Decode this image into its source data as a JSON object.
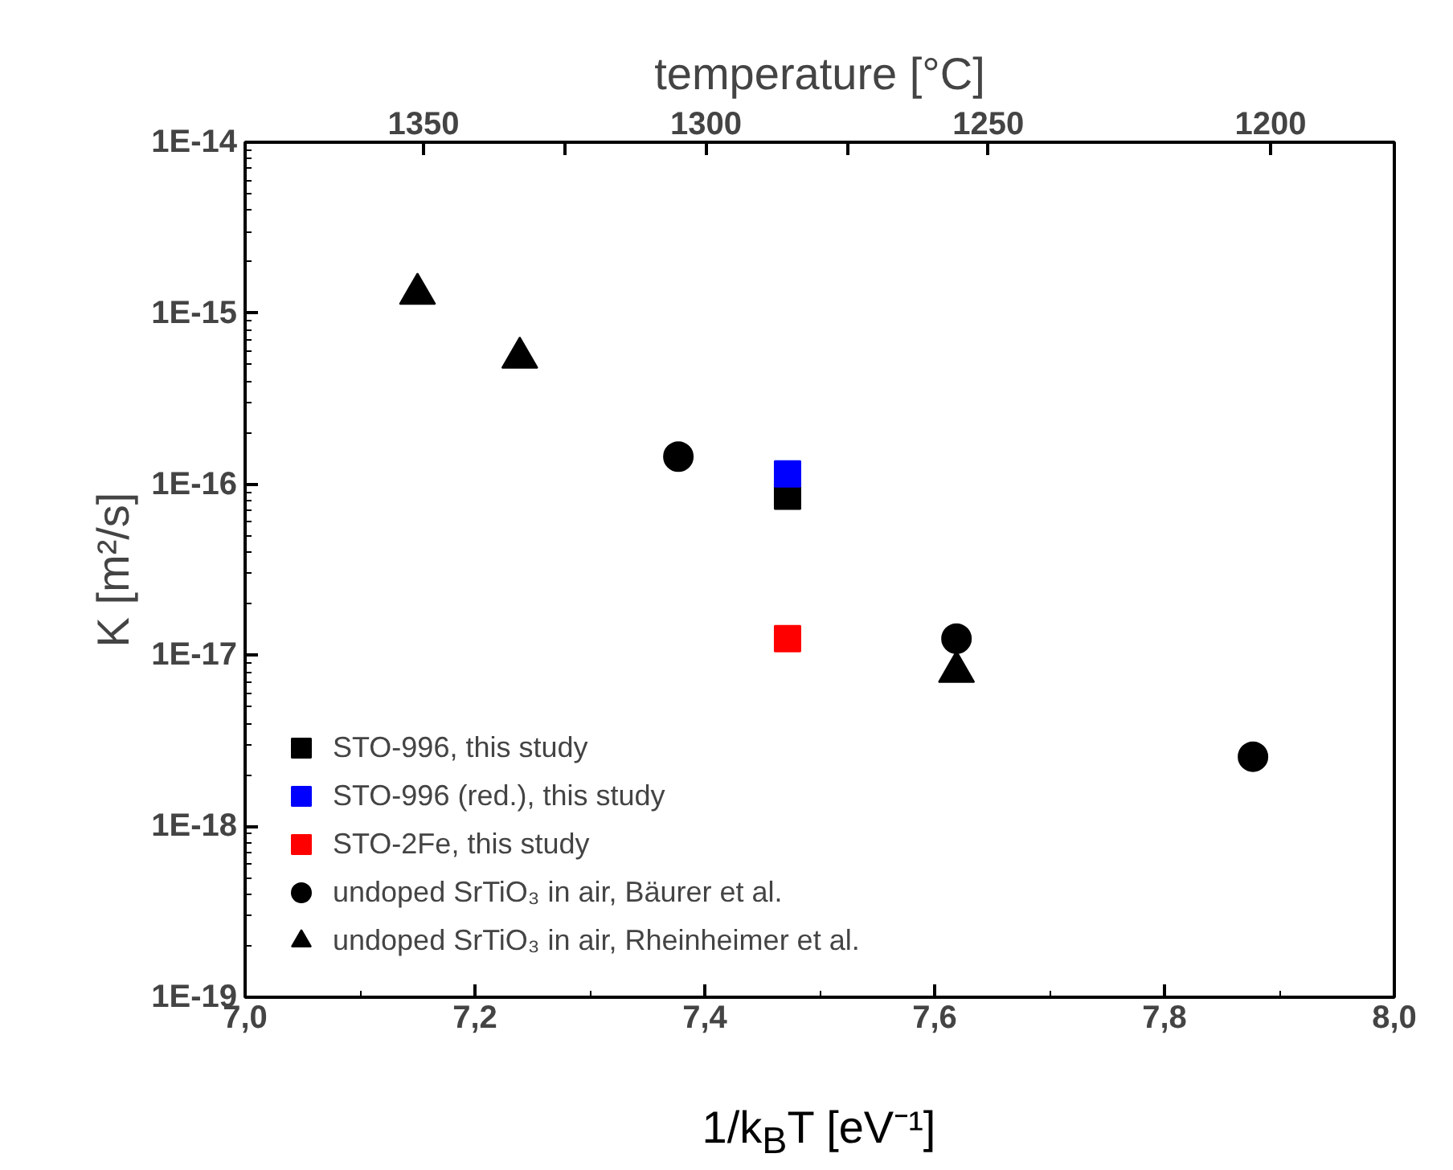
{
  "chart_data": {
    "type": "scatter",
    "xlabel": "1/k$_{B}$T [eV⁻¹]",
    "ylabel": "K [m²/s]",
    "x2label": "temperature [°C]",
    "xlim": [
      7.0,
      8.0
    ],
    "xticks": [
      {
        "value": 7.0,
        "label": "7,0"
      },
      {
        "value": 7.2,
        "label": "7,2"
      },
      {
        "value": 7.4,
        "label": "7,4"
      },
      {
        "value": 7.6,
        "label": "7,6"
      },
      {
        "value": 7.8,
        "label": "7,8"
      },
      {
        "value": 8.0,
        "label": "8,0"
      }
    ],
    "x2lim": [
      1381.6,
      1178.1
    ],
    "x2ticks": [
      1350,
      {
        "value": 1325,
        "label": null
      },
      1300,
      {
        "value": 1275,
        "label": null
      },
      1250,
      1200
    ],
    "ylim": [
      1e-19,
      1e-14
    ],
    "yticks": [
      {
        "value": 1e-19,
        "label": "1E-19"
      },
      {
        "value": 1e-18,
        "label": "1E-18"
      },
      {
        "value": 1e-17,
        "label": "1E-17"
      },
      {
        "value": 1e-16,
        "label": "1E-16"
      },
      {
        "value": 1e-15,
        "label": "1E-15"
      },
      {
        "value": 1e-14,
        "label": "1E-14"
      }
    ],
    "log": "y",
    "grid": false,
    "legend": "bottom left",
    "series": [
      {
        "name": "STO-996, this study",
        "color": "#000000",
        "marker": "square",
        "x": [
          7.472
        ],
        "values": [
          8.5e-17
        ]
      },
      {
        "name": "STO-996 (red.), this study",
        "color": "#0000ff",
        "marker": "square",
        "x": [
          7.472
        ],
        "values": [
          1.15e-16
        ]
      },
      {
        "name": "STO-2Fe, this study",
        "color": "#ff0000",
        "marker": "square",
        "x": [
          7.472
        ],
        "values": [
          1.25e-17
        ]
      },
      {
        "name": "undoped SrTiO₃ in air, Bäurer et al.",
        "color": "#000000",
        "marker": "circle",
        "x": [
          7.377,
          7.619,
          7.877
        ],
        "values": [
          1.45e-16,
          1.25e-17,
          2.55e-18
        ]
      },
      {
        "name": "undoped SrTiO₃ in air, Rheinheimer et al.",
        "color": "#000000",
        "marker": "triangle",
        "x": [
          7.15,
          7.239,
          7.619
        ],
        "values": [
          1.3e-15,
          5.5e-16,
          8e-18
        ]
      }
    ]
  }
}
